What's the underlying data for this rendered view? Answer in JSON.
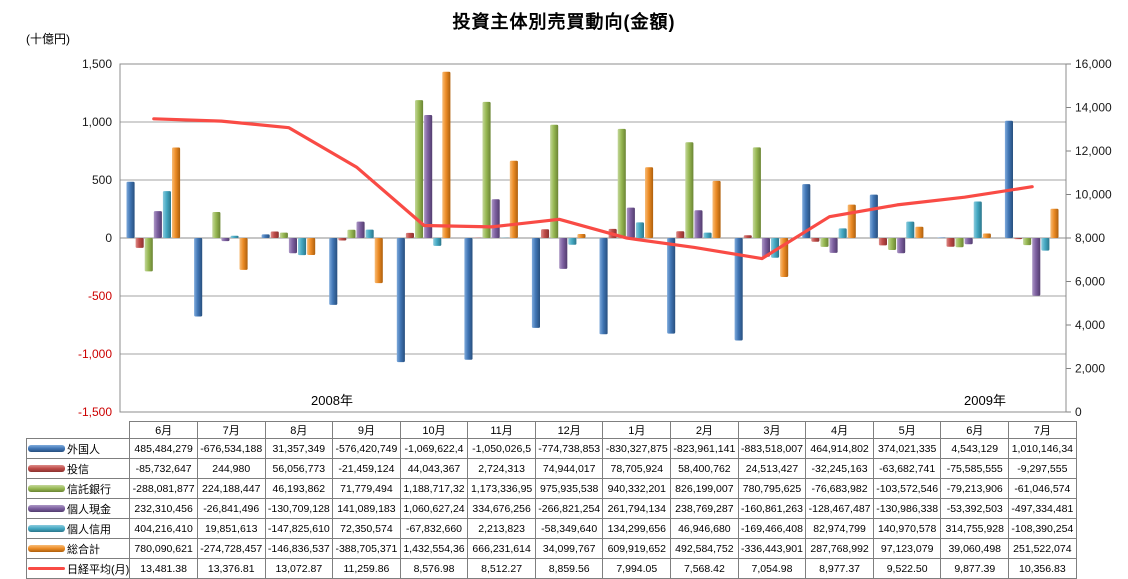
{
  "title": "投資主体別売買動向(金額)",
  "unit_label": "(十億円)",
  "year_labels": [
    "2008年",
    "2009年"
  ],
  "chart_data": {
    "type": "bar+line",
    "title": "投資主体別売買動向(金額)",
    "categories": [
      "6月",
      "7月",
      "8月",
      "9月",
      "10月",
      "11月",
      "12月",
      "1月",
      "2月",
      "3月",
      "4月",
      "5月",
      "6月",
      "7月"
    ],
    "category_groups": [
      {
        "label": "2008年",
        "span": "6月-12月"
      },
      {
        "label": "2009年",
        "span": "1月-7月"
      }
    ],
    "left_axis": {
      "unit": "(十億円)",
      "min": -1500,
      "max": 1500,
      "ticks": [
        "1,500",
        "1,000",
        "500",
        "0",
        "-500",
        "-1,000",
        "-1,500"
      ]
    },
    "right_axis": {
      "min": 0,
      "max": 16000,
      "ticks": [
        "16,000",
        "14,000",
        "12,000",
        "10,000",
        "8,000",
        "6,000",
        "4,000",
        "2,000",
        "0"
      ]
    },
    "grid": "horizontal",
    "legend_position": "table-left",
    "series": [
      {
        "id": "foreigners",
        "name": "外国人",
        "type": "bar",
        "color": "#4176b5",
        "light": "#7fabdc",
        "dark": "#274f7e",
        "values": [
          485.5,
          -676.5,
          31.4,
          -576.4,
          -1069.6,
          -1050.0,
          -774.7,
          -830.3,
          -824.0,
          -883.5,
          464.9,
          374.0,
          4.5,
          1010.1
        ]
      },
      {
        "id": "investment-trust",
        "name": "投信",
        "type": "bar",
        "color": "#be4b48",
        "light": "#dd8b88",
        "dark": "#8b322f",
        "values": [
          -85.7,
          0.2,
          56.1,
          -21.5,
          44.0,
          2.7,
          74.9,
          78.7,
          58.4,
          24.5,
          -32.2,
          -63.7,
          -75.6,
          -9.3
        ]
      },
      {
        "id": "trust-bank",
        "name": "信託銀行",
        "type": "bar",
        "color": "#98b954",
        "light": "#c4d79b",
        "dark": "#6a8433",
        "values": [
          -288.1,
          224.2,
          46.2,
          71.8,
          1188.7,
          1173.3,
          975.9,
          940.3,
          826.2,
          780.8,
          -76.7,
          -103.6,
          -79.2,
          -61.0
        ]
      },
      {
        "id": "individual-cash",
        "name": "個人現金",
        "type": "bar",
        "color": "#7d60a0",
        "light": "#ac97c5",
        "dark": "#523c6e",
        "values": [
          232.3,
          -26.8,
          -130.7,
          141.1,
          1060.6,
          334.7,
          -266.8,
          261.8,
          238.8,
          -160.9,
          -128.5,
          -131.0,
          -53.4,
          -497.3
        ]
      },
      {
        "id": "individual-margin",
        "name": "個人信用",
        "type": "bar",
        "color": "#45a9c3",
        "light": "#8bcbdd",
        "dark": "#2b768b",
        "values": [
          404.2,
          19.9,
          -147.8,
          72.4,
          -67.8,
          2.2,
          -58.3,
          134.3,
          46.9,
          -169.5,
          83.0,
          141.0,
          314.8,
          -108.4
        ]
      },
      {
        "id": "total",
        "name": "総合計",
        "type": "bar",
        "color": "#ec8c26",
        "light": "#f8bc77",
        "dark": "#ae5f0c",
        "values": [
          780.1,
          -274.7,
          -146.8,
          -388.7,
          1432.6,
          666.2,
          34.1,
          609.9,
          492.6,
          -336.4,
          287.8,
          97.1,
          39.1,
          251.5
        ]
      },
      {
        "id": "nikkei-monthly",
        "name": "日経平均(月)",
        "type": "line",
        "axis": "right",
        "color": "#f94b45",
        "values": [
          13481.38,
          13376.81,
          13072.87,
          11259.86,
          8576.98,
          8512.27,
          8859.56,
          7994.05,
          7568.42,
          7054.98,
          8977.37,
          9522.5,
          9877.39,
          10356.83
        ]
      }
    ]
  },
  "table": {
    "col_headers": [
      "6月",
      "7月",
      "8月",
      "9月",
      "10月",
      "11月",
      "12月",
      "1月",
      "2月",
      "3月",
      "4月",
      "5月",
      "6月",
      "7月"
    ],
    "rows": [
      {
        "id": "foreigners",
        "label": "外国人",
        "cells": [
          "485,484,279",
          "-676,534,188",
          "31,357,349",
          "-576,420,749",
          "-1,069,622,4",
          "-1,050,026,5",
          "-774,738,853",
          "-830,327,875",
          "-823,961,141",
          "-883,518,007",
          "464,914,802",
          "374,021,335",
          "4,543,129",
          "1,010,146,34"
        ]
      },
      {
        "id": "investment-trust",
        "label": "投信",
        "cells": [
          "-85,732,647",
          "244,980",
          "56,056,773",
          "-21,459,124",
          "44,043,367",
          "2,724,313",
          "74,944,017",
          "78,705,924",
          "58,400,762",
          "24,513,427",
          "-32,245,163",
          "-63,682,741",
          "-75,585,555",
          "-9,297,555"
        ]
      },
      {
        "id": "trust-bank",
        "label": "信託銀行",
        "cells": [
          "-288,081,877",
          "224,188,447",
          "46,193,862",
          "71,779,494",
          "1,188,717,32",
          "1,173,336,95",
          "975,935,538",
          "940,332,201",
          "826,199,007",
          "780,795,625",
          "-76,683,982",
          "-103,572,546",
          "-79,213,906",
          "-61,046,574"
        ]
      },
      {
        "id": "individual-cash",
        "label": "個人現金",
        "cells": [
          "232,310,456",
          "-26,841,496",
          "-130,709,128",
          "141,089,183",
          "1,060,627,24",
          "334,676,256",
          "-266,821,254",
          "261,794,134",
          "238,769,287",
          "-160,861,263",
          "-128,467,487",
          "-130,986,338",
          "-53,392,503",
          "-497,334,481"
        ]
      },
      {
        "id": "individual-margin",
        "label": "個人信用",
        "cells": [
          "404,216,410",
          "19,851,613",
          "-147,825,610",
          "72,350,574",
          "-67,832,660",
          "2,213,823",
          "-58,349,640",
          "134,299,656",
          "46,946,680",
          "-169,466,408",
          "82,974,799",
          "140,970,578",
          "314,755,928",
          "-108,390,254"
        ]
      },
      {
        "id": "total",
        "label": "総合計",
        "cells": [
          "780,090,621",
          "-274,728,457",
          "-146,836,537",
          "-388,705,371",
          "1,432,554,36",
          "666,231,614",
          "34,099,767",
          "609,919,652",
          "492,584,752",
          "-336,443,901",
          "287,768,992",
          "97,123,079",
          "39,060,498",
          "251,522,074"
        ]
      },
      {
        "id": "nikkei-monthly",
        "label": "日経平均(月)",
        "cells": [
          "13,481.38",
          "13,376.81",
          "13,072.87",
          "11,259.86",
          "8,576.98",
          "8,512.27",
          "8,859.56",
          "7,994.05",
          "7,568.42",
          "7,054.98",
          "8,977.37",
          "9,522.50",
          "9,877.39",
          "10,356.83"
        ]
      }
    ]
  }
}
